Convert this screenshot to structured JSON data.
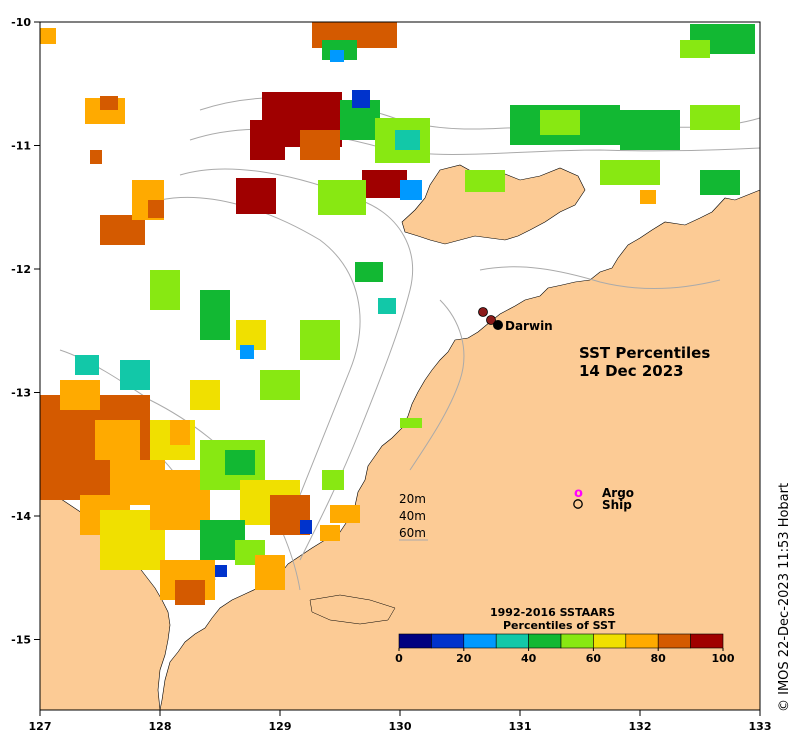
{
  "map": {
    "title_line1": "SST Percentiles",
    "title_line2": "14 Dec 2023",
    "city_label": "Darwin",
    "land_color": "#fccb95",
    "water_color": "#ffffff",
    "isobath_color": "#aaaaaa"
  },
  "axes": {
    "x_ticks": [
      "127",
      "128",
      "129",
      "130",
      "131",
      "132",
      "133"
    ],
    "y_ticks": [
      "-10",
      "-11",
      "-12",
      "-13",
      "-14",
      "-15"
    ]
  },
  "legend": {
    "argo_label": "Argo",
    "ship_label": "Ship",
    "argo_symbol": "o",
    "depth_labels": [
      "20m",
      "40m",
      "60m"
    ]
  },
  "colorbar": {
    "title_line1": "1992-2016 SSTAARS",
    "title_line2": "Percentiles of SST",
    "ticks": [
      "0",
      "20",
      "40",
      "60",
      "80",
      "100"
    ],
    "colors": [
      "#000080",
      "#0033cc",
      "#0099ff",
      "#12c8a8",
      "#12b833",
      "#88e812",
      "#f0e000",
      "#ffaa00",
      "#d45a00",
      "#a00000"
    ]
  },
  "credit": "© IMOS 22-Dec-2023 11:53 Hobart"
}
